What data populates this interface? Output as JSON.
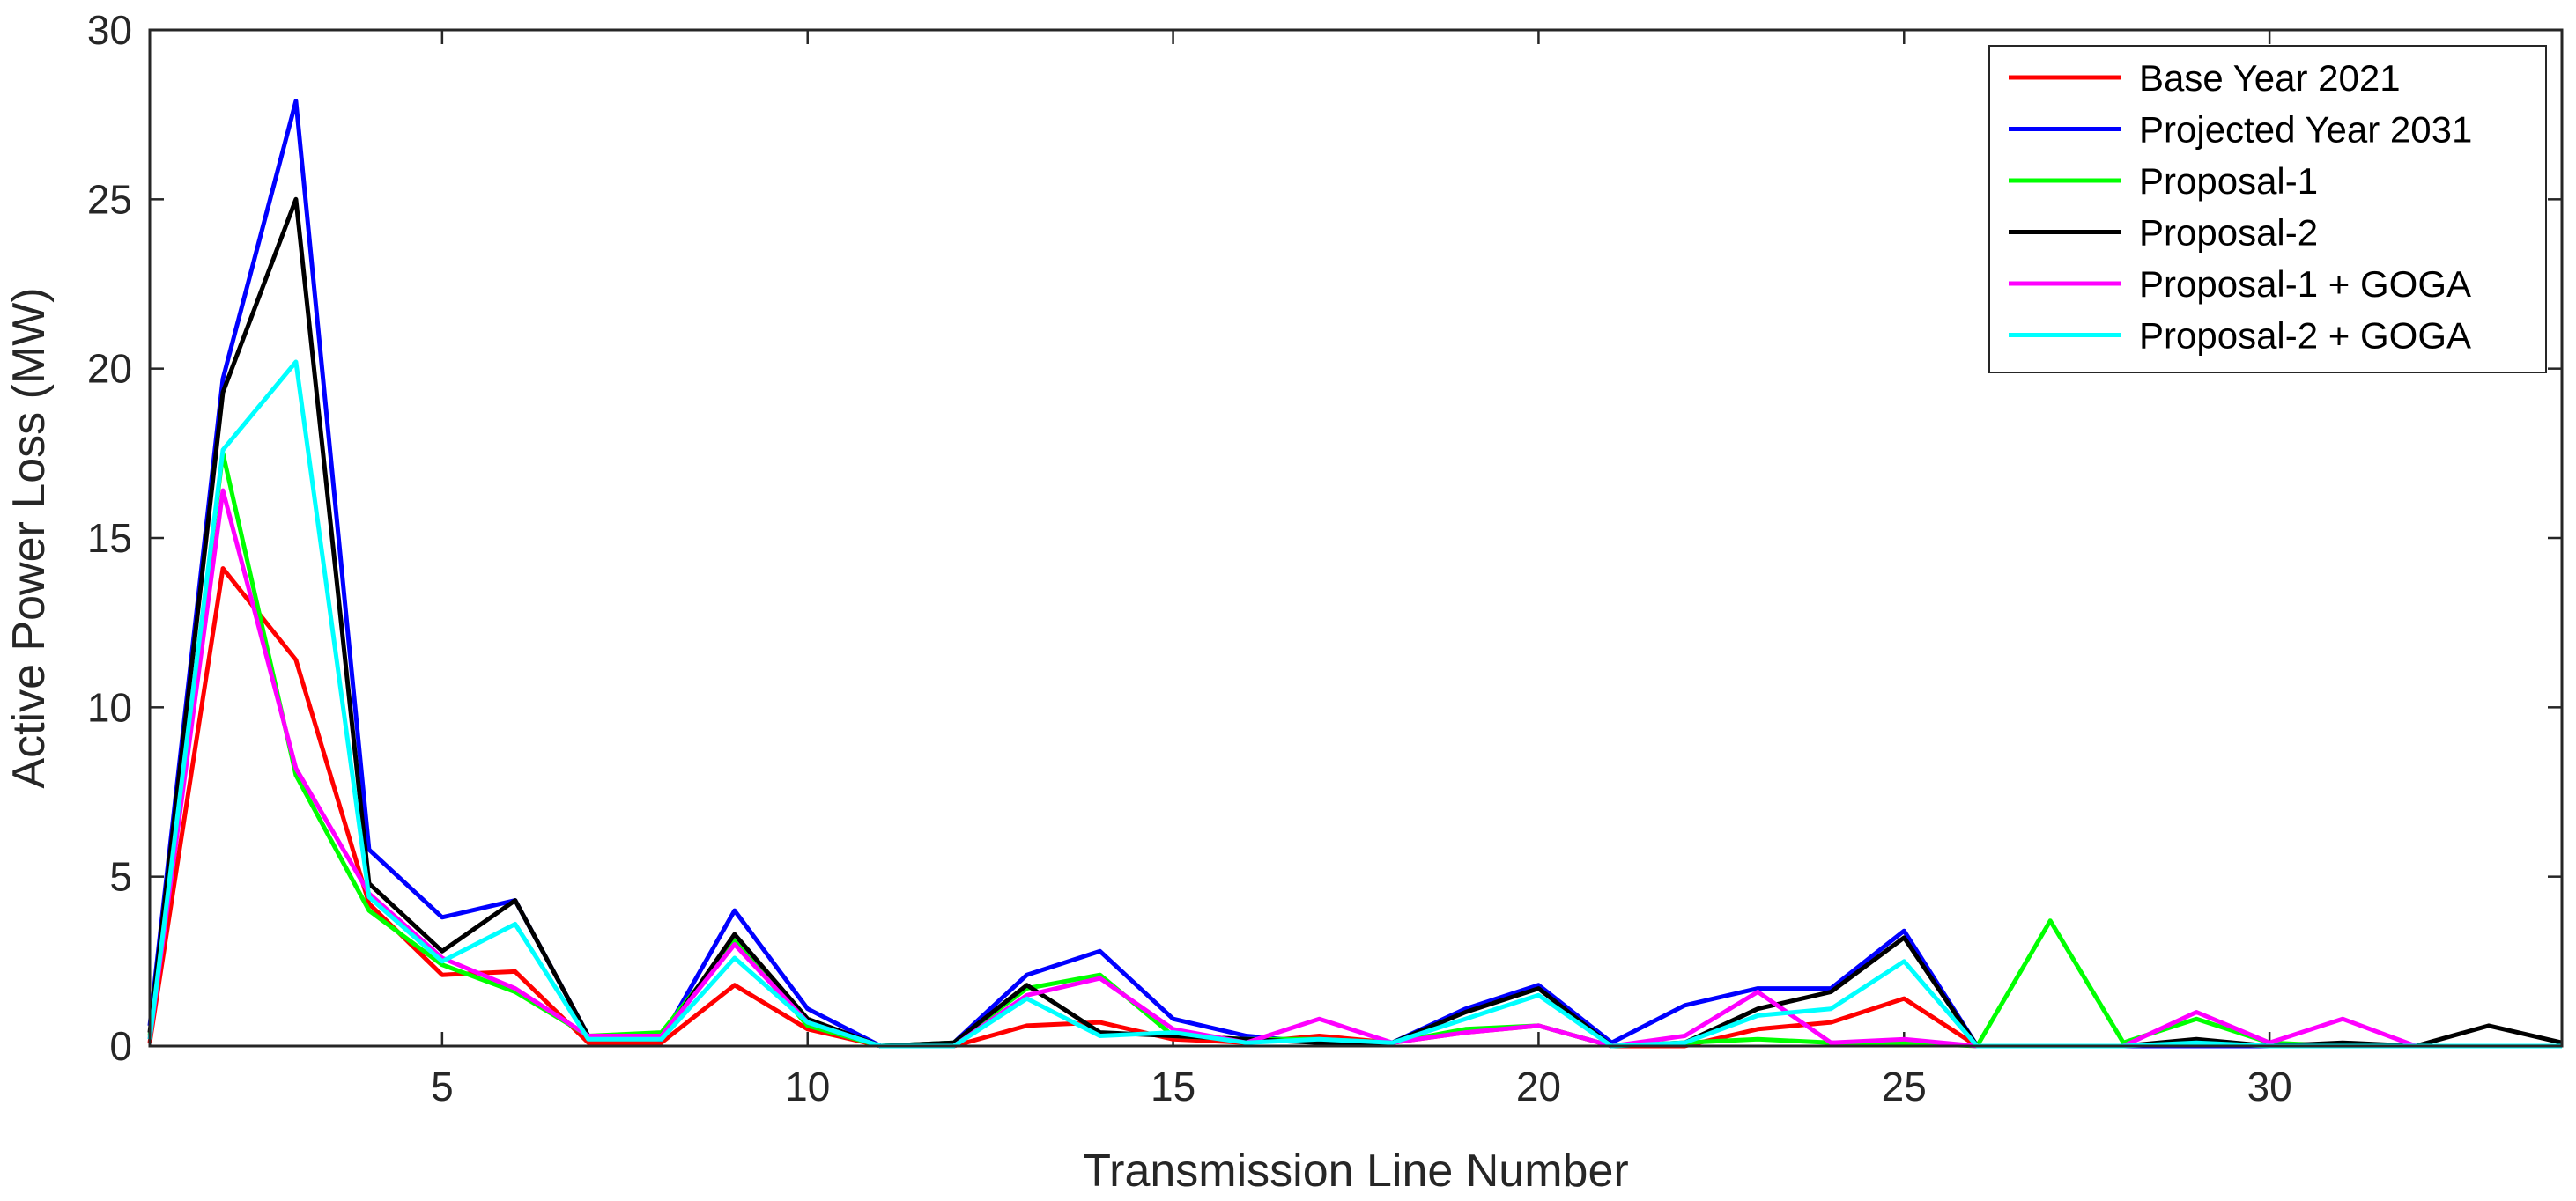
{
  "chart_data": {
    "type": "line",
    "title": "",
    "xlabel": "Transmission Line Number",
    "ylabel": "Active Power Loss (MW)",
    "xlim": [
      1,
      34
    ],
    "ylim": [
      0,
      30
    ],
    "xticks": [
      5,
      10,
      15,
      20,
      25,
      30
    ],
    "yticks": [
      0,
      5,
      10,
      15,
      20,
      25,
      30
    ],
    "grid": false,
    "legend_position": "top-right",
    "x": [
      1,
      2,
      3,
      4,
      5,
      6,
      7,
      8,
      9,
      10,
      11,
      12,
      13,
      14,
      15,
      16,
      17,
      18,
      19,
      20,
      21,
      22,
      23,
      24,
      25,
      26,
      27,
      28,
      29,
      30,
      31,
      32,
      33,
      34
    ],
    "series": [
      {
        "name": "Base Year 2021",
        "color": "#ff0000",
        "values": [
          0.1,
          14.1,
          11.4,
          4.2,
          2.1,
          2.2,
          0.1,
          0.1,
          1.8,
          0.5,
          0.0,
          0.0,
          0.6,
          0.7,
          0.2,
          0.1,
          0.3,
          0.1,
          0.4,
          0.6,
          0.0,
          0.0,
          0.5,
          0.7,
          1.4,
          0.0,
          0.0,
          0.0,
          0.0,
          0.0,
          0.0,
          0.0,
          0.0,
          0.0
        ]
      },
      {
        "name": "Projected Year 2031",
        "color": "#0000ff",
        "values": [
          0.6,
          19.7,
          27.9,
          5.8,
          3.8,
          4.3,
          0.3,
          0.2,
          4.0,
          1.1,
          0.0,
          0.1,
          2.1,
          2.8,
          0.8,
          0.3,
          0.1,
          0.1,
          1.1,
          1.8,
          0.1,
          1.2,
          1.7,
          1.7,
          3.4,
          0.0,
          0.0,
          0.0,
          0.0,
          0.0,
          0.0,
          0.0,
          0.0,
          0.0
        ]
      },
      {
        "name": "Proposal-1",
        "color": "#00ff00",
        "values": [
          0.3,
          17.5,
          8.0,
          4.0,
          2.4,
          1.6,
          0.3,
          0.4,
          3.1,
          0.6,
          0.0,
          0.1,
          1.7,
          2.1,
          0.3,
          0.2,
          0.2,
          0.1,
          0.5,
          0.6,
          0.0,
          0.1,
          0.2,
          0.1,
          0.1,
          0.0,
          3.7,
          0.1,
          0.8,
          0.1,
          0.0,
          0.0,
          0.0,
          0.0
        ]
      },
      {
        "name": "Proposal-2",
        "color": "#000000",
        "values": [
          0.4,
          19.3,
          25.0,
          4.8,
          2.8,
          4.3,
          0.3,
          0.2,
          3.3,
          0.8,
          0.0,
          0.1,
          1.8,
          0.4,
          0.3,
          0.2,
          0.1,
          0.1,
          1.0,
          1.7,
          0.0,
          0.1,
          1.1,
          1.6,
          3.2,
          0.0,
          0.0,
          0.0,
          0.2,
          0.0,
          0.1,
          0.0,
          0.6,
          0.1
        ]
      },
      {
        "name": "Proposal-1 + GOGA",
        "color": "#ff00ff",
        "values": [
          0.2,
          16.4,
          8.2,
          4.5,
          2.6,
          1.7,
          0.3,
          0.3,
          3.0,
          0.7,
          0.0,
          0.0,
          1.5,
          2.0,
          0.5,
          0.1,
          0.8,
          0.1,
          0.4,
          0.6,
          0.0,
          0.3,
          1.6,
          0.1,
          0.2,
          0.0,
          0.0,
          0.0,
          1.0,
          0.1,
          0.8,
          0.0,
          0.0,
          0.0
        ]
      },
      {
        "name": "Proposal-2 + GOGA",
        "color": "#00ffff",
        "values": [
          0.2,
          17.6,
          20.2,
          4.4,
          2.5,
          3.6,
          0.2,
          0.2,
          2.6,
          0.7,
          0.0,
          0.0,
          1.4,
          0.3,
          0.4,
          0.1,
          0.2,
          0.1,
          0.8,
          1.5,
          0.0,
          0.1,
          0.9,
          1.1,
          2.5,
          0.0,
          0.0,
          0.0,
          0.1,
          0.0,
          0.0,
          0.0,
          0.0,
          0.0
        ]
      }
    ]
  }
}
